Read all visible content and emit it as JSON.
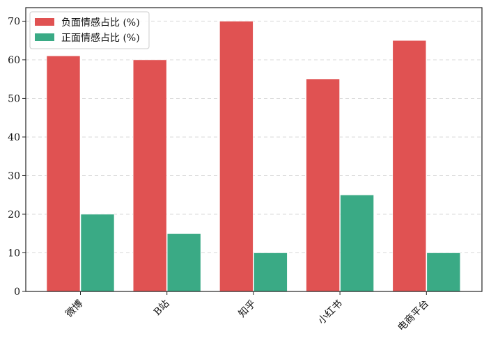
{
  "chart_data": {
    "type": "bar",
    "categories": [
      "微博",
      "B站",
      "知乎",
      "小红书",
      "电商平台"
    ],
    "series": [
      {
        "name": "负面情感占比 (%)",
        "values": [
          61,
          60,
          70,
          55,
          65
        ],
        "color": "#e05252"
      },
      {
        "name": "正面情感占比 (%)",
        "values": [
          20,
          15,
          10,
          25,
          10
        ],
        "color": "#3aaa85"
      }
    ],
    "title": "",
    "xlabel": "",
    "ylabel": "",
    "ylim": [
      0,
      73.5
    ],
    "yticks": [
      0,
      10,
      20,
      30,
      40,
      50,
      60,
      70
    ],
    "grid": true,
    "legend_position": "top-left"
  }
}
